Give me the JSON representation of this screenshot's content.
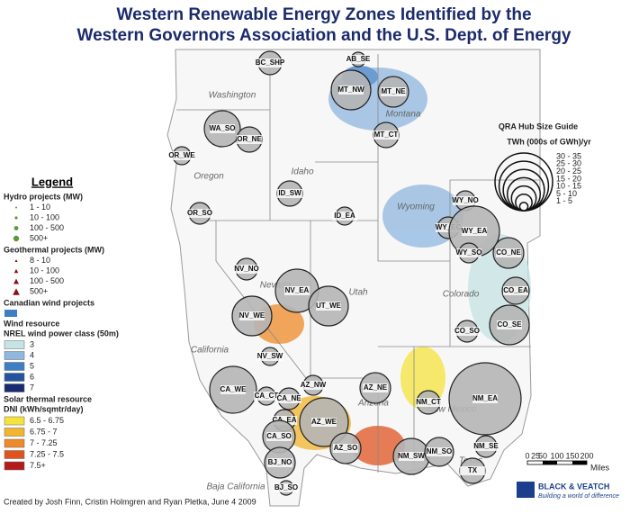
{
  "title": [
    "Western Renewable Energy Zones Identified by the",
    "Western Governors Association and the U.S. Dept. of Energy"
  ],
  "legend": {
    "title": "Legend",
    "hydro": {
      "heading": "Hydro projects (MW)",
      "items": [
        "1 - 10",
        "10 - 100",
        "100 - 500",
        "500+"
      ]
    },
    "geothermal": {
      "heading": "Geothermal projects (MW)",
      "items": [
        "8 - 10",
        "10 - 100",
        "100 - 500",
        "500+"
      ]
    },
    "canadian_wind": "Canadian wind projects",
    "wind": {
      "heading": "Wind resource",
      "subheading": "NREL wind power class (50m)",
      "items": [
        "3",
        "4",
        "5",
        "6",
        "7"
      ]
    },
    "solar": {
      "heading": "Solar thermal resource",
      "subheading": "DNI (kWh/sqmtr/day)",
      "items": [
        "6.5 - 6.75",
        "6.75 - 7",
        "7 - 7.25",
        "7.25 - 7.5",
        "7.5+"
      ]
    }
  },
  "hub_guide": {
    "title": "QRA Hub Size Guide",
    "unit": "TWh (000s of GWh)/yr",
    "items": [
      "30 - 35",
      "25 - 30",
      "20 - 25",
      "15 - 20",
      "10 - 15",
      "5 - 10",
      "1 - 5"
    ]
  },
  "zones": [
    "BC_SHP",
    "AB_SE",
    "MT_NW",
    "MT_NE",
    "WA_SO",
    "OR_NE",
    "MT_CT",
    "OR_WE",
    "ID_SW",
    "ID_EA",
    "OR_SO",
    "WY_NO",
    "WY_EC",
    "WY_EA",
    "CO_NE",
    "WY_SO",
    "NV_NO",
    "NV_EA",
    "UT_WE",
    "CO_EA",
    "NV_WE",
    "CO_SE",
    "CO_SO",
    "NV_SW",
    "CA_WE",
    "AZ_NW",
    "AZ_NE",
    "CA_CT",
    "CA_NE",
    "NM_CT",
    "NM_EA",
    "CA_EA",
    "AZ_WE",
    "CA_SO",
    "AZ_SO",
    "NM_SW",
    "NM_SO",
    "NM_SE",
    "BJ_NO",
    "TX",
    "BJ_SO"
  ],
  "states": [
    "Washington",
    "Montana",
    "Oregon",
    "Idaho",
    "Wyoming",
    "Nevada",
    "Utah",
    "Colorado",
    "California",
    "Arizona",
    "New Mexico",
    "Texas",
    "Baja California"
  ],
  "scale": {
    "ticks": [
      0,
      25,
      50,
      100,
      150,
      200
    ],
    "unit": "Miles"
  },
  "credit": "Created by Josh Finn, Cristin Holmgren and Ryan Pletka, June 4 2009",
  "logo": {
    "name": "BLACK & VEATCH",
    "tagline": "Building a world of difference"
  }
}
